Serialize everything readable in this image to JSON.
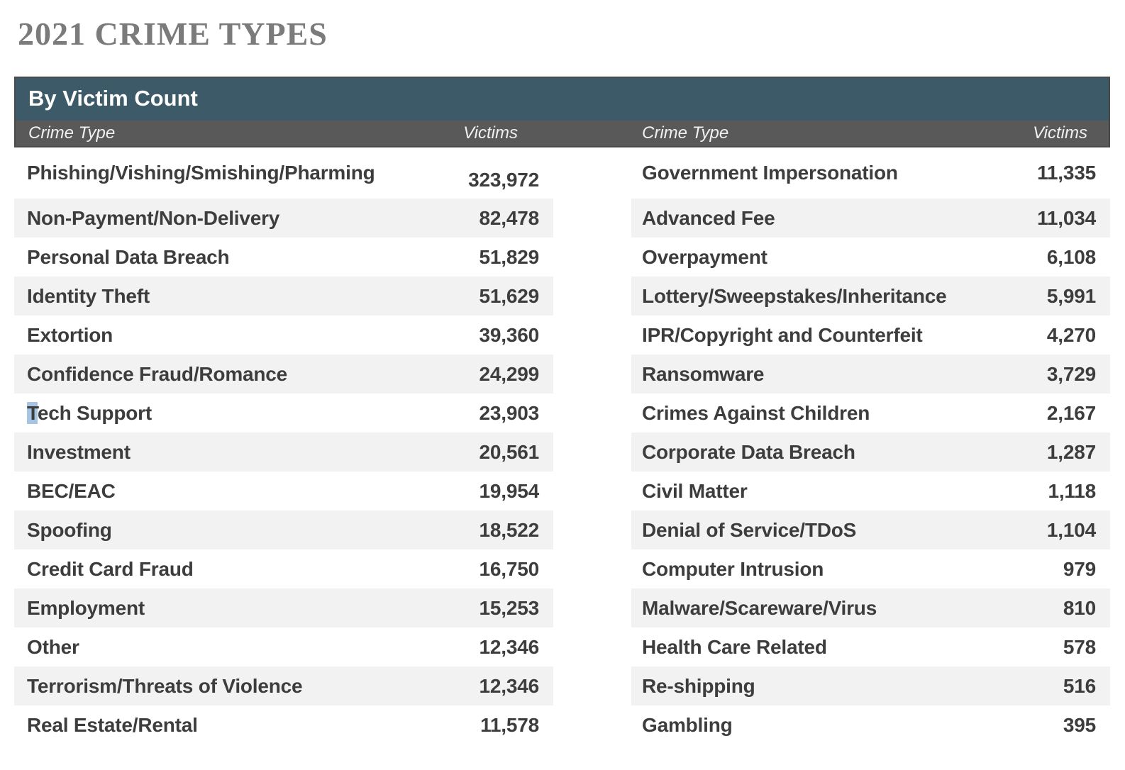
{
  "page": {
    "title": "2021 CRIME TYPES"
  },
  "table": {
    "banner_title": "By Victim Count",
    "headers": {
      "crime_type": "Crime Type",
      "victims": "Victims"
    },
    "left_rows": [
      {
        "crime_type": "Phishing/Vishing/Smishing/Pharming",
        "victims": "323,972"
      },
      {
        "crime_type": "Non-Payment/Non-Delivery",
        "victims": "82,478"
      },
      {
        "crime_type": "Personal Data Breach",
        "victims": "51,829"
      },
      {
        "crime_type": "Identity Theft",
        "victims": "51,629"
      },
      {
        "crime_type": "Extortion",
        "victims": "39,360"
      },
      {
        "crime_type": "Confidence Fraud/Romance",
        "victims": "24,299"
      },
      {
        "crime_type": "Tech Support",
        "victims": "23,903",
        "highlight_first_char": true
      },
      {
        "crime_type": "Investment",
        "victims": "20,561"
      },
      {
        "crime_type": "BEC/EAC",
        "victims": "19,954"
      },
      {
        "crime_type": "Spoofing",
        "victims": "18,522"
      },
      {
        "crime_type": "Credit Card Fraud",
        "victims": "16,750"
      },
      {
        "crime_type": "Employment",
        "victims": "15,253"
      },
      {
        "crime_type": "Other",
        "victims": "12,346"
      },
      {
        "crime_type": "Terrorism/Threats of Violence",
        "victims": "12,346"
      },
      {
        "crime_type": "Real Estate/Rental",
        "victims": "11,578"
      }
    ],
    "right_rows": [
      {
        "crime_type": "Government Impersonation",
        "victims": "11,335"
      },
      {
        "crime_type": "Advanced Fee",
        "victims": "11,034"
      },
      {
        "crime_type": "Overpayment",
        "victims": "6,108"
      },
      {
        "crime_type": "Lottery/Sweepstakes/Inheritance",
        "victims": "5,991"
      },
      {
        "crime_type": "IPR/Copyright and Counterfeit",
        "victims": "4,270"
      },
      {
        "crime_type": "Ransomware",
        "victims": "3,729"
      },
      {
        "crime_type": "Crimes Against Children",
        "victims": "2,167"
      },
      {
        "crime_type": "Corporate Data Breach",
        "victims": "1,287"
      },
      {
        "crime_type": "Civil Matter",
        "victims": "1,118"
      },
      {
        "crime_type": "Denial of Service/TDoS",
        "victims": "1,104"
      },
      {
        "crime_type": "Computer Intrusion",
        "victims": "979"
      },
      {
        "crime_type": "Malware/Scareware/Virus",
        "victims": "810"
      },
      {
        "crime_type": "Health Care Related",
        "victims": "578"
      },
      {
        "crime_type": "Re-shipping",
        "victims": "516"
      },
      {
        "crime_type": "Gambling",
        "victims": "395"
      }
    ]
  },
  "colors": {
    "banner_bg": "#3d5a68",
    "subheader_bg": "#595959",
    "row_alt_bg": "#f2f2f2",
    "row_text": "#3d3d3d",
    "title_color": "#7b7b7b",
    "selection_bg": "#a7c5e3"
  }
}
